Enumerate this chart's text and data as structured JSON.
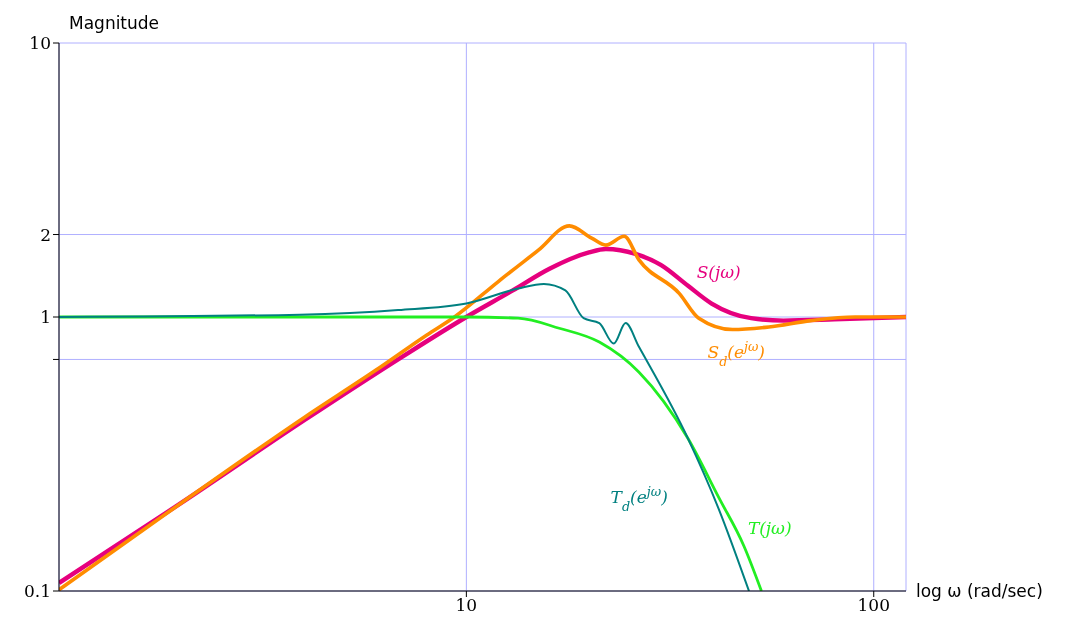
{
  "chart_data": {
    "type": "line",
    "ylabel": "Magnitude",
    "xlabel": "log ω (rad/sec)",
    "log": "xy",
    "xlim": [
      1,
      120
    ],
    "xticks": [
      10,
      100
    ],
    "ylim": [
      0.1,
      10
    ],
    "yticks": [
      0.1,
      {
        "value": 0.7,
        "label": null
      },
      1,
      2,
      10
    ],
    "grid": true,
    "marker": "none",
    "series": [
      {
        "name": "S(jω)",
        "color": "#e6007e",
        "x": [
          1,
          2,
          4,
          7,
          10,
          13,
          16,
          20,
          22,
          26,
          30,
          35,
          40,
          50,
          60,
          80,
          120
        ],
        "values": [
          0.107,
          0.21,
          0.42,
          0.72,
          1.0,
          1.25,
          1.5,
          1.72,
          1.77,
          1.7,
          1.55,
          1.3,
          1.12,
          0.99,
          0.97,
          0.98,
          1.0
        ]
      },
      {
        "name": "S$_{d}$(e$^{jω}$)",
        "color": "#ff8c00",
        "x": [
          1,
          2,
          4,
          6,
          8,
          9.35,
          12,
          15,
          17.9,
          20.3,
          22,
          24.4,
          26.5,
          33.3,
          37.2,
          45,
          55.3,
          70,
          90,
          120
        ],
        "values": [
          0.101,
          0.21,
          0.43,
          0.64,
          0.86,
          1.0,
          1.35,
          1.75,
          2.15,
          1.94,
          1.83,
          1.97,
          1.62,
          1.22,
          0.99,
          0.9,
          0.92,
          0.97,
          1.0,
          1.0
        ]
      },
      {
        "name": "T(jω)",
        "color": "#22ee22",
        "x": [
          1,
          5,
          10,
          13.4,
          16.9,
          21.2,
          26.5,
          35,
          41.6,
          48,
          53
        ],
        "values": [
          1,
          1,
          1,
          0.99,
          0.91,
          0.81,
          0.63,
          0.36,
          0.22,
          0.146,
          0.1
        ]
      },
      {
        "name": "T$_{d}$(e$^{jω}$)",
        "color": "#008080",
        "x": [
          1,
          3.9,
          6.8,
          10,
          13.4,
          15.5,
          17.5,
          19.4,
          21.2,
          23,
          24.6,
          26.5,
          35,
          41.6,
          49.4
        ],
        "values": [
          1,
          1.02,
          1.06,
          1.12,
          1.27,
          1.32,
          1.25,
          0.99,
          0.95,
          0.8,
          0.95,
          0.78,
          0.36,
          0.2,
          0.1
        ]
      }
    ]
  }
}
